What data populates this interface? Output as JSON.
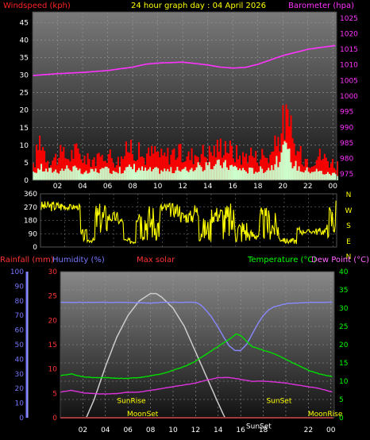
{
  "header": {
    "left": "Windspeed (kph)",
    "center": "24 hour graph day : 04 April 2026",
    "right": "Barometer (hpa)"
  },
  "lower_header": {
    "rainfall": "Rainfall (mm)",
    "humidity": "Humidity (%)",
    "solar": "Max solar",
    "temperature": "Temperature (°C)",
    "dewpoint": "Dew Point (°C)"
  },
  "colors": {
    "background": "#000000",
    "wind_gust": "#ff0000",
    "wind_avg": "#ccffcc",
    "barometer": "#ff33ff",
    "direction": "#ffff00",
    "rainfall": "#ff3333",
    "humidity": "#8888ff",
    "solar": "#cccccc",
    "temperature": "#00dd00",
    "dewpoint": "#dd33dd",
    "temp_axis": "#00ff00",
    "rain_axis": "#ff3333",
    "hum_axis": "#7777ff",
    "dp_label": "#ff66ff",
    "solar_label": "#ff3333",
    "grid": "#9a9a9a",
    "tick_text": "#ffffff"
  },
  "chart_data": [
    {
      "id": "wind_baro",
      "type": "bar",
      "x_ticks": [
        "02",
        "04",
        "06",
        "08",
        "10",
        "12",
        "14",
        "16",
        "18",
        "20",
        "22",
        "00"
      ],
      "y_left": {
        "label": "Windspeed (kph)",
        "ticks": [
          "0",
          "5",
          "10",
          "15",
          "20",
          "25",
          "30",
          "35",
          "40",
          "45"
        ],
        "ylim": [
          0,
          48
        ]
      },
      "y_right": {
        "label": "Barometer (hpa)",
        "ticks": [
          "975",
          "980",
          "985",
          "990",
          "995",
          "1000",
          "1005",
          "1010",
          "1015",
          "1020",
          "1025"
        ],
        "ylim": [
          973,
          1027
        ]
      },
      "x_range_hours": [
        0,
        24.3
      ],
      "gust_anchors": [
        [
          0,
          4
        ],
        [
          0.3,
          9
        ],
        [
          0.6,
          14
        ],
        [
          0.9,
          9
        ],
        [
          1.3,
          6
        ],
        [
          1.8,
          7
        ],
        [
          2.3,
          8
        ],
        [
          2.8,
          7
        ],
        [
          3.3,
          9
        ],
        [
          3.8,
          8
        ],
        [
          4.3,
          6
        ],
        [
          4.8,
          7
        ],
        [
          5.3,
          6
        ],
        [
          5.8,
          9
        ],
        [
          6.3,
          7
        ],
        [
          6.8,
          6
        ],
        [
          7.3,
          8
        ],
        [
          7.8,
          11
        ],
        [
          8.3,
          9
        ],
        [
          8.8,
          7
        ],
        [
          9.3,
          8
        ],
        [
          9.8,
          9
        ],
        [
          10.3,
          7
        ],
        [
          10.8,
          8
        ],
        [
          11.3,
          9
        ],
        [
          11.8,
          8
        ],
        [
          12.3,
          7
        ],
        [
          12.8,
          8
        ],
        [
          13.3,
          9
        ],
        [
          13.8,
          8
        ],
        [
          14.3,
          9
        ],
        [
          14.8,
          10
        ],
        [
          15.3,
          12
        ],
        [
          15.8,
          9
        ],
        [
          16.3,
          8
        ],
        [
          16.8,
          7
        ],
        [
          17.3,
          9
        ],
        [
          17.8,
          7
        ],
        [
          18.3,
          8
        ],
        [
          18.8,
          7
        ],
        [
          19.3,
          10
        ],
        [
          19.6,
          13
        ],
        [
          19.9,
          17
        ],
        [
          20.2,
          19
        ],
        [
          20.5,
          16
        ],
        [
          20.8,
          11
        ],
        [
          21.2,
          8
        ],
        [
          21.7,
          7
        ],
        [
          22.2,
          6
        ],
        [
          22.7,
          8
        ],
        [
          23.2,
          7
        ],
        [
          23.7,
          6
        ],
        [
          24.2,
          5
        ]
      ],
      "avg_anchors": [
        [
          0,
          2
        ],
        [
          0.5,
          4
        ],
        [
          1,
          3
        ],
        [
          2,
          3
        ],
        [
          3,
          4
        ],
        [
          4,
          2
        ],
        [
          5,
          3
        ],
        [
          6,
          3
        ],
        [
          7,
          3
        ],
        [
          8,
          4
        ],
        [
          9,
          3
        ],
        [
          10,
          3
        ],
        [
          11,
          3
        ],
        [
          12,
          3
        ],
        [
          13,
          4
        ],
        [
          14,
          4
        ],
        [
          15,
          5
        ],
        [
          16,
          4
        ],
        [
          17,
          3
        ],
        [
          18,
          3
        ],
        [
          19,
          4
        ],
        [
          19.6,
          6
        ],
        [
          20,
          9
        ],
        [
          20.4,
          8
        ],
        [
          20.8,
          5
        ],
        [
          21.5,
          3
        ],
        [
          22.5,
          3
        ],
        [
          23.5,
          2
        ],
        [
          24.2,
          2
        ]
      ],
      "pressure": [
        [
          0,
          1006.6
        ],
        [
          2,
          1007.2
        ],
        [
          4,
          1007.6
        ],
        [
          6,
          1008.2
        ],
        [
          8,
          1009.3
        ],
        [
          9,
          1010.2
        ],
        [
          10,
          1010.6
        ],
        [
          12,
          1010.9
        ],
        [
          14,
          1010.0
        ],
        [
          15,
          1009.3
        ],
        [
          16,
          1009.0
        ],
        [
          17,
          1009.2
        ],
        [
          18,
          1010.2
        ],
        [
          19,
          1011.6
        ],
        [
          20,
          1013.0
        ],
        [
          21,
          1014.0
        ],
        [
          22,
          1015.0
        ],
        [
          23,
          1015.6
        ],
        [
          24.2,
          1016.2
        ]
      ]
    },
    {
      "id": "wind_direction",
      "type": "line",
      "x_range_hours": [
        0,
        24.3
      ],
      "y_left": {
        "ticks": [
          "0",
          "90",
          "180",
          "270",
          "360"
        ],
        "ylim": [
          0,
          360
        ]
      },
      "y_right": {
        "ticks": [
          "N",
          "W",
          "S",
          "E",
          "N"
        ]
      },
      "segments": [
        [
          0,
          240,
          310
        ],
        [
          2,
          250,
          290
        ],
        [
          3.3,
          30,
          120
        ],
        [
          3.8,
          30,
          60
        ],
        [
          4.5,
          80,
          300
        ],
        [
          5.5,
          160,
          240
        ],
        [
          6.3,
          150,
          200
        ],
        [
          6.8,
          20,
          60
        ],
        [
          7.8,
          160,
          300
        ],
        [
          8.2,
          40,
          300
        ],
        [
          9.3,
          40,
          240
        ],
        [
          9.8,
          220,
          300
        ],
        [
          10.5,
          200,
          300
        ],
        [
          11.5,
          160,
          250
        ],
        [
          12.5,
          180,
          300
        ],
        [
          13,
          30,
          200
        ],
        [
          14,
          160,
          280
        ],
        [
          15,
          40,
          300
        ],
        [
          16,
          20,
          200
        ],
        [
          17,
          40,
          120
        ],
        [
          18,
          40,
          270
        ],
        [
          19,
          40,
          230
        ],
        [
          19.5,
          30,
          80
        ],
        [
          20,
          20,
          60
        ],
        [
          21,
          80,
          140
        ],
        [
          21.5,
          90,
          120
        ],
        [
          22.5,
          80,
          130
        ],
        [
          23.5,
          60,
          300
        ],
        [
          24.2,
          230,
          330
        ]
      ]
    },
    {
      "id": "temp_hum_solar",
      "type": "line",
      "x_ticks": [
        "02",
        "04",
        "06",
        "08",
        "10",
        "12",
        "14",
        "16",
        "18",
        "22",
        "00"
      ],
      "x_range_hours": [
        0,
        24.3
      ],
      "y_humidity": {
        "label": "Humidity (%)",
        "ticks": [
          "0",
          "10",
          "20",
          "30",
          "40",
          "50",
          "60",
          "70",
          "80",
          "90",
          "100"
        ],
        "ylim": [
          0,
          100
        ]
      },
      "y_rainfall": {
        "label": "Rainfall (mm)",
        "ticks": [
          "0",
          "5",
          "10",
          "15",
          "20",
          "25",
          "30"
        ],
        "ylim": [
          0,
          30
        ]
      },
      "y_temperature": {
        "label": "Temperature (°C)",
        "ticks": [
          "0",
          "5",
          "10",
          "15",
          "20",
          "25",
          "30",
          "35",
          "40"
        ],
        "ylim": [
          0,
          40
        ]
      },
      "temperature": [
        [
          0,
          11.5
        ],
        [
          1,
          12
        ],
        [
          2,
          11.2
        ],
        [
          3,
          11
        ],
        [
          4,
          11
        ],
        [
          5,
          10.8
        ],
        [
          6,
          10.8
        ],
        [
          7,
          11
        ],
        [
          8,
          11.5
        ],
        [
          9,
          12
        ],
        [
          10,
          13
        ],
        [
          11,
          14
        ],
        [
          12,
          15.5
        ],
        [
          13,
          17.5
        ],
        [
          14,
          19.5
        ],
        [
          15,
          21.5
        ],
        [
          15.6,
          23
        ],
        [
          16,
          22.5
        ],
        [
          16.5,
          21
        ],
        [
          17,
          19.5
        ],
        [
          18,
          18.5
        ],
        [
          19,
          17.5
        ],
        [
          20,
          16
        ],
        [
          21,
          14.5
        ],
        [
          22,
          13
        ],
        [
          23,
          12
        ],
        [
          24.2,
          11.2
        ]
      ],
      "dewpoint": [
        [
          0,
          7
        ],
        [
          1,
          7.5
        ],
        [
          2,
          6.8
        ],
        [
          3,
          6.6
        ],
        [
          4,
          6.5
        ],
        [
          5,
          6.6
        ],
        [
          6,
          7
        ],
        [
          7,
          7
        ],
        [
          8,
          7.5
        ],
        [
          9,
          8
        ],
        [
          10,
          8.5
        ],
        [
          11,
          9
        ],
        [
          12,
          9.5
        ],
        [
          13,
          10.3
        ],
        [
          14,
          11
        ],
        [
          15,
          11
        ],
        [
          16,
          10.5
        ],
        [
          17,
          10
        ],
        [
          18,
          10
        ],
        [
          19,
          9.8
        ],
        [
          20,
          9.5
        ],
        [
          21,
          9
        ],
        [
          22,
          8.5
        ],
        [
          23,
          8
        ],
        [
          24.2,
          7
        ]
      ],
      "humidity": [
        [
          0,
          79
        ],
        [
          2,
          79
        ],
        [
          4,
          79
        ],
        [
          6,
          79
        ],
        [
          8,
          78.5
        ],
        [
          9,
          79
        ],
        [
          10,
          79
        ],
        [
          11,
          79
        ],
        [
          12,
          79
        ],
        [
          12.5,
          77
        ],
        [
          13,
          73
        ],
        [
          13.5,
          68
        ],
        [
          14,
          62
        ],
        [
          14.5,
          55
        ],
        [
          15,
          49
        ],
        [
          15.5,
          46
        ],
        [
          16,
          46
        ],
        [
          16.5,
          50
        ],
        [
          17,
          57
        ],
        [
          17.5,
          64
        ],
        [
          18,
          70
        ],
        [
          18.5,
          74
        ],
        [
          19,
          76
        ],
        [
          20,
          78
        ],
        [
          22,
          79
        ],
        [
          24.2,
          79
        ]
      ],
      "solar": [
        [
          2.3,
          0
        ],
        [
          3,
          5
        ],
        [
          4,
          14
        ],
        [
          5,
          22
        ],
        [
          6,
          28
        ],
        [
          7,
          32
        ],
        [
          8,
          34
        ],
        [
          8.5,
          34
        ],
        [
          9,
          33
        ],
        [
          10,
          30
        ],
        [
          11,
          25
        ],
        [
          12,
          18
        ],
        [
          13,
          11
        ],
        [
          14,
          4
        ],
        [
          14.6,
          0
        ]
      ],
      "rainfall": [
        [
          0,
          0
        ],
        [
          24.2,
          0
        ]
      ],
      "annotations": [
        {
          "text": "SunRise",
          "color": "#ffff00",
          "hour": 6.3,
          "value": 4
        },
        {
          "text": "SunSet",
          "color": "#ffff00",
          "hour": 19.4,
          "value": 4
        },
        {
          "text": "MoonSet",
          "color": "#ffff00",
          "hour": 7.3,
          "value": 0.4
        },
        {
          "text": "MoonRise",
          "color": "#ffff00",
          "hour": 23.5,
          "value": 0.4
        },
        {
          "text": "SunSet",
          "color": "#ffffff",
          "hour": 17.6,
          "value": -2.9
        }
      ]
    }
  ]
}
